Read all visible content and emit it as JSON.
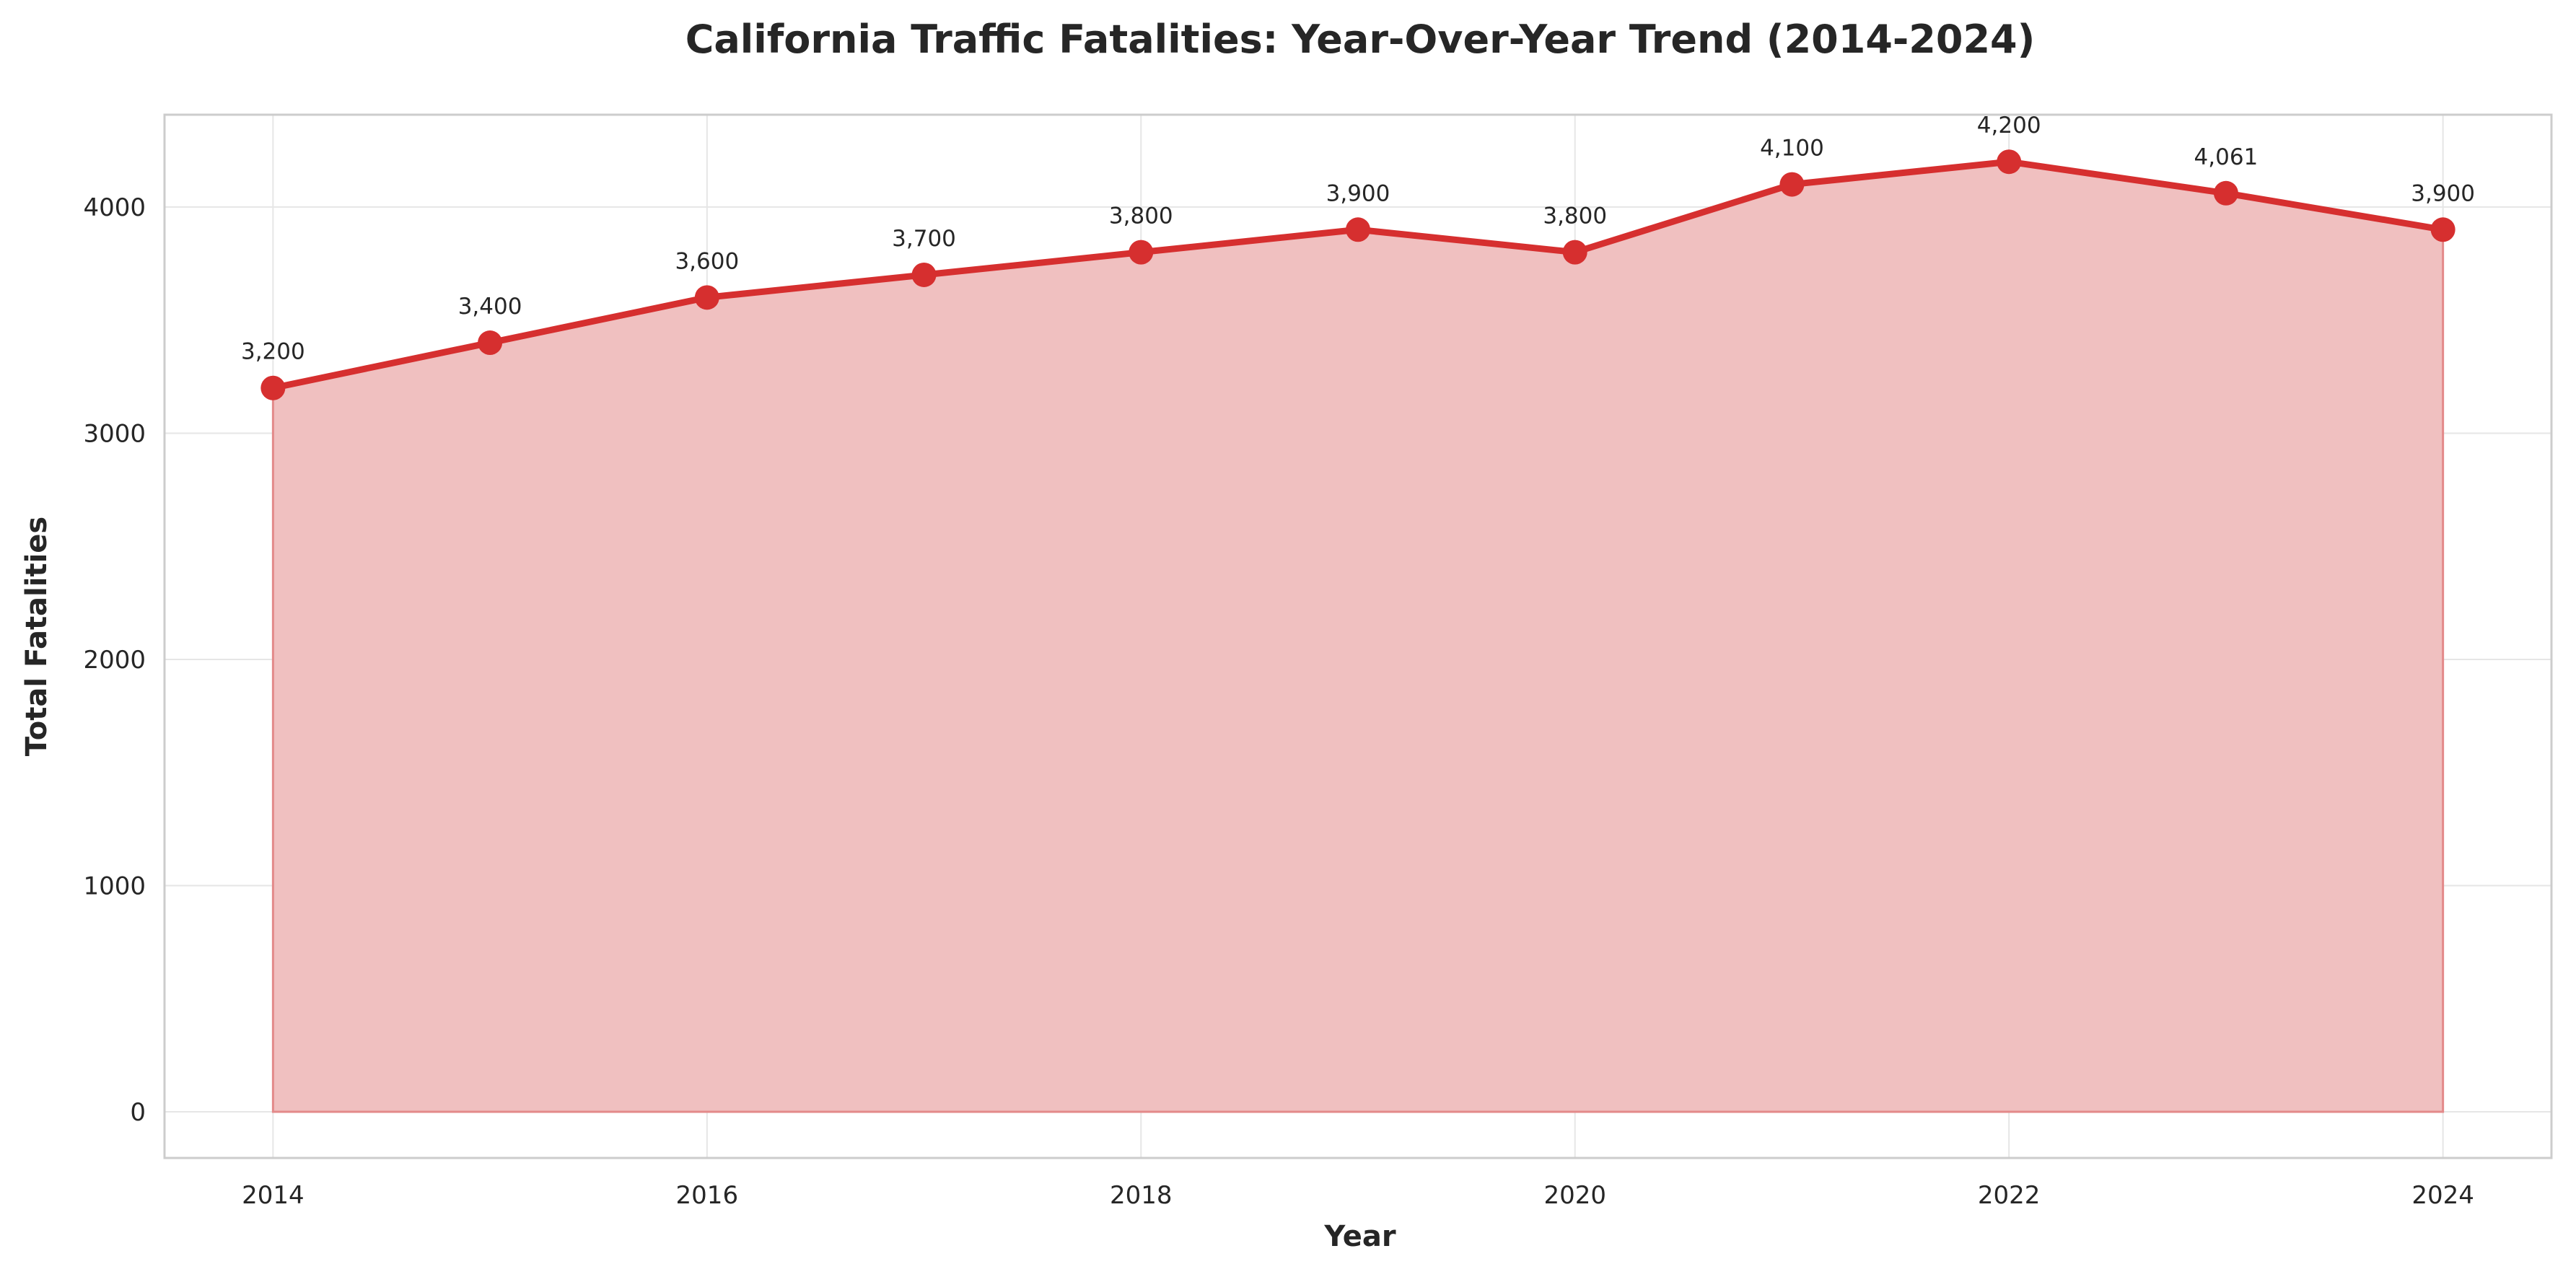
{
  "chart_data": {
    "type": "area",
    "title": "California Traffic Fatalities: Year-Over-Year Trend (2014-2024)",
    "xlabel": "Year",
    "ylabel": "Total Fatalities",
    "x": [
      2014,
      2015,
      2016,
      2017,
      2018,
      2019,
      2020,
      2021,
      2022,
      2023,
      2024
    ],
    "values": [
      3200,
      3400,
      3600,
      3700,
      3800,
      3900,
      3800,
      4100,
      4200,
      4061,
      3900
    ],
    "data_labels": [
      "3,200",
      "3,400",
      "3,600",
      "3,700",
      "3,800",
      "3,900",
      "3,800",
      "4,100",
      "4,200",
      "4,061",
      "3,900"
    ],
    "x_ticks": [
      "2014",
      "2016",
      "2018",
      "2020",
      "2022",
      "2024"
    ],
    "y_ticks": [
      "0",
      "1000",
      "2000",
      "3000",
      "4000"
    ],
    "xlim": [
      2013.5,
      2024.5
    ],
    "ylim": [
      -204,
      4408
    ],
    "grid": true,
    "colors": {
      "line": "#d62f2f",
      "fill": "#f0c0c0"
    }
  }
}
